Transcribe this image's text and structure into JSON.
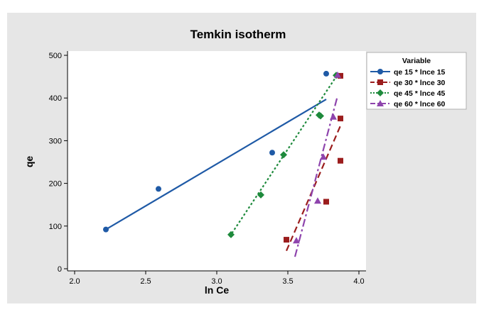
{
  "colors": {
    "page_background": "#ffffff",
    "outer_panel": "#e6e6e6",
    "plot_area": "#ffffff",
    "axis": "#000000",
    "text": "#000000"
  },
  "chart_data": {
    "type": "scatter",
    "title": "Temkin isotherm",
    "xlabel": "ln Ce",
    "ylabel": "qe",
    "xlim": [
      1.95,
      4.05
    ],
    "ylim": [
      -5,
      510
    ],
    "x_ticks": [
      "2.0",
      "2.5",
      "3.0",
      "3.5",
      "4.0"
    ],
    "y_ticks": [
      "0",
      "100",
      "200",
      "300",
      "400",
      "500"
    ],
    "x_tick_values": [
      2.0,
      2.5,
      3.0,
      3.5,
      4.0
    ],
    "y_tick_values": [
      0,
      100,
      200,
      300,
      400,
      500
    ],
    "grid": false,
    "legend": {
      "title": "Variable",
      "placement": "right"
    },
    "series": [
      {
        "name": "qe 15 * lnce 15",
        "color": "#1f5aa6",
        "marker": "circle",
        "line_style": "solid",
        "points": [
          [
            2.22,
            92
          ],
          [
            2.59,
            187
          ],
          [
            3.39,
            272
          ],
          [
            3.77,
            457
          ]
        ],
        "fit_line": [
          [
            2.22,
            92
          ],
          [
            3.77,
            397
          ]
        ]
      },
      {
        "name": "qe 30 * lnce 30",
        "color": "#9b1d1d",
        "marker": "square",
        "line_style": "dashed",
        "points": [
          [
            3.49,
            68
          ],
          [
            3.77,
            157
          ],
          [
            3.87,
            253
          ],
          [
            3.87,
            352
          ],
          [
            3.87,
            452
          ]
        ],
        "fit_line": [
          [
            3.49,
            42
          ],
          [
            3.87,
            335
          ]
        ]
      },
      {
        "name": "qe 45 * lnce 45",
        "color": "#1e8a3c",
        "marker": "diamond",
        "line_style": "dotted",
        "points": [
          [
            3.1,
            80
          ],
          [
            3.31,
            173
          ],
          [
            3.47,
            267
          ],
          [
            3.72,
            360
          ],
          [
            3.73,
            358
          ],
          [
            3.84,
            453
          ]
        ],
        "fit_line": [
          [
            3.09,
            75
          ],
          [
            3.85,
            455
          ]
        ]
      },
      {
        "name": "qe 60 * lnce 60",
        "color": "#8e44ad",
        "marker": "triangle",
        "line_style": "dashdot",
        "points": [
          [
            3.56,
            66
          ],
          [
            3.71,
            159
          ],
          [
            3.75,
            262
          ],
          [
            3.82,
            356
          ],
          [
            3.85,
            454
          ]
        ],
        "fit_line": [
          [
            3.55,
            28
          ],
          [
            3.85,
            405
          ]
        ]
      }
    ]
  }
}
